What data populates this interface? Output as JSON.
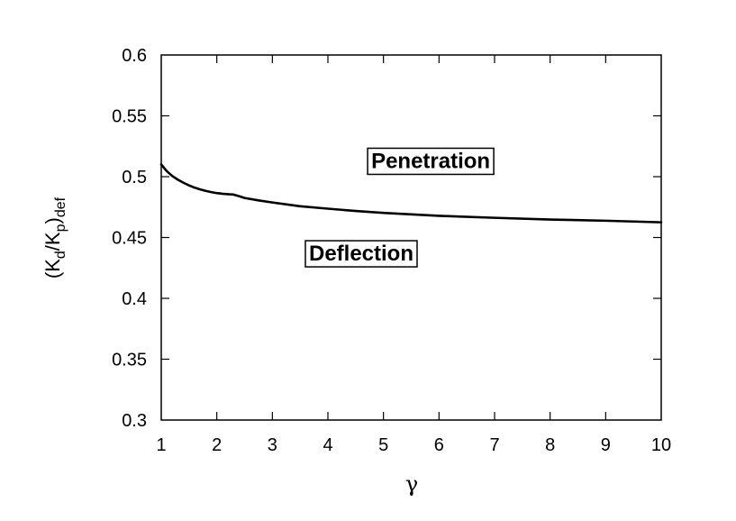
{
  "chart_data": {
    "type": "line",
    "xlabel": "γ",
    "ylabel_parts": {
      "open": "(K",
      "sub1": "d",
      "mid": "/K",
      "sub2": "p",
      "close": ")",
      "sub3": "def"
    },
    "xlim": [
      1,
      10
    ],
    "ylim": [
      0.3,
      0.6
    ],
    "xticks": [
      "1",
      "2",
      "3",
      "4",
      "5",
      "6",
      "7",
      "8",
      "9",
      "10"
    ],
    "yticks": [
      "0.3",
      "0.35",
      "0.4",
      "0.45",
      "0.5",
      "0.55",
      "0.6"
    ],
    "grid": false,
    "legend": "none",
    "series": [
      {
        "x": [
          1.0,
          1.1,
          1.2,
          1.3,
          1.4,
          1.5,
          1.6,
          1.7,
          1.8,
          1.9,
          2.0,
          2.1,
          2.2,
          2.3,
          2.4,
          2.5,
          2.75,
          3.0,
          3.5,
          4.0,
          4.5,
          5.0,
          5.5,
          6.0,
          7.0,
          8.0,
          9.0,
          10.0
        ],
        "y": [
          0.51,
          0.5045,
          0.5005,
          0.4975,
          0.495,
          0.4928,
          0.491,
          0.4895,
          0.4883,
          0.4873,
          0.4865,
          0.486,
          0.4856,
          0.4853,
          0.484,
          0.4825,
          0.4805,
          0.4788,
          0.4757,
          0.4737,
          0.4718,
          0.4702,
          0.469,
          0.4678,
          0.4662,
          0.4648,
          0.4638,
          0.4625
        ],
        "color": "#000000"
      }
    ],
    "annotations": [
      {
        "text": "Penetration",
        "x": 5.85,
        "y": 0.513
      },
      {
        "text": "Deflection",
        "x": 4.6,
        "y": 0.437
      }
    ]
  }
}
